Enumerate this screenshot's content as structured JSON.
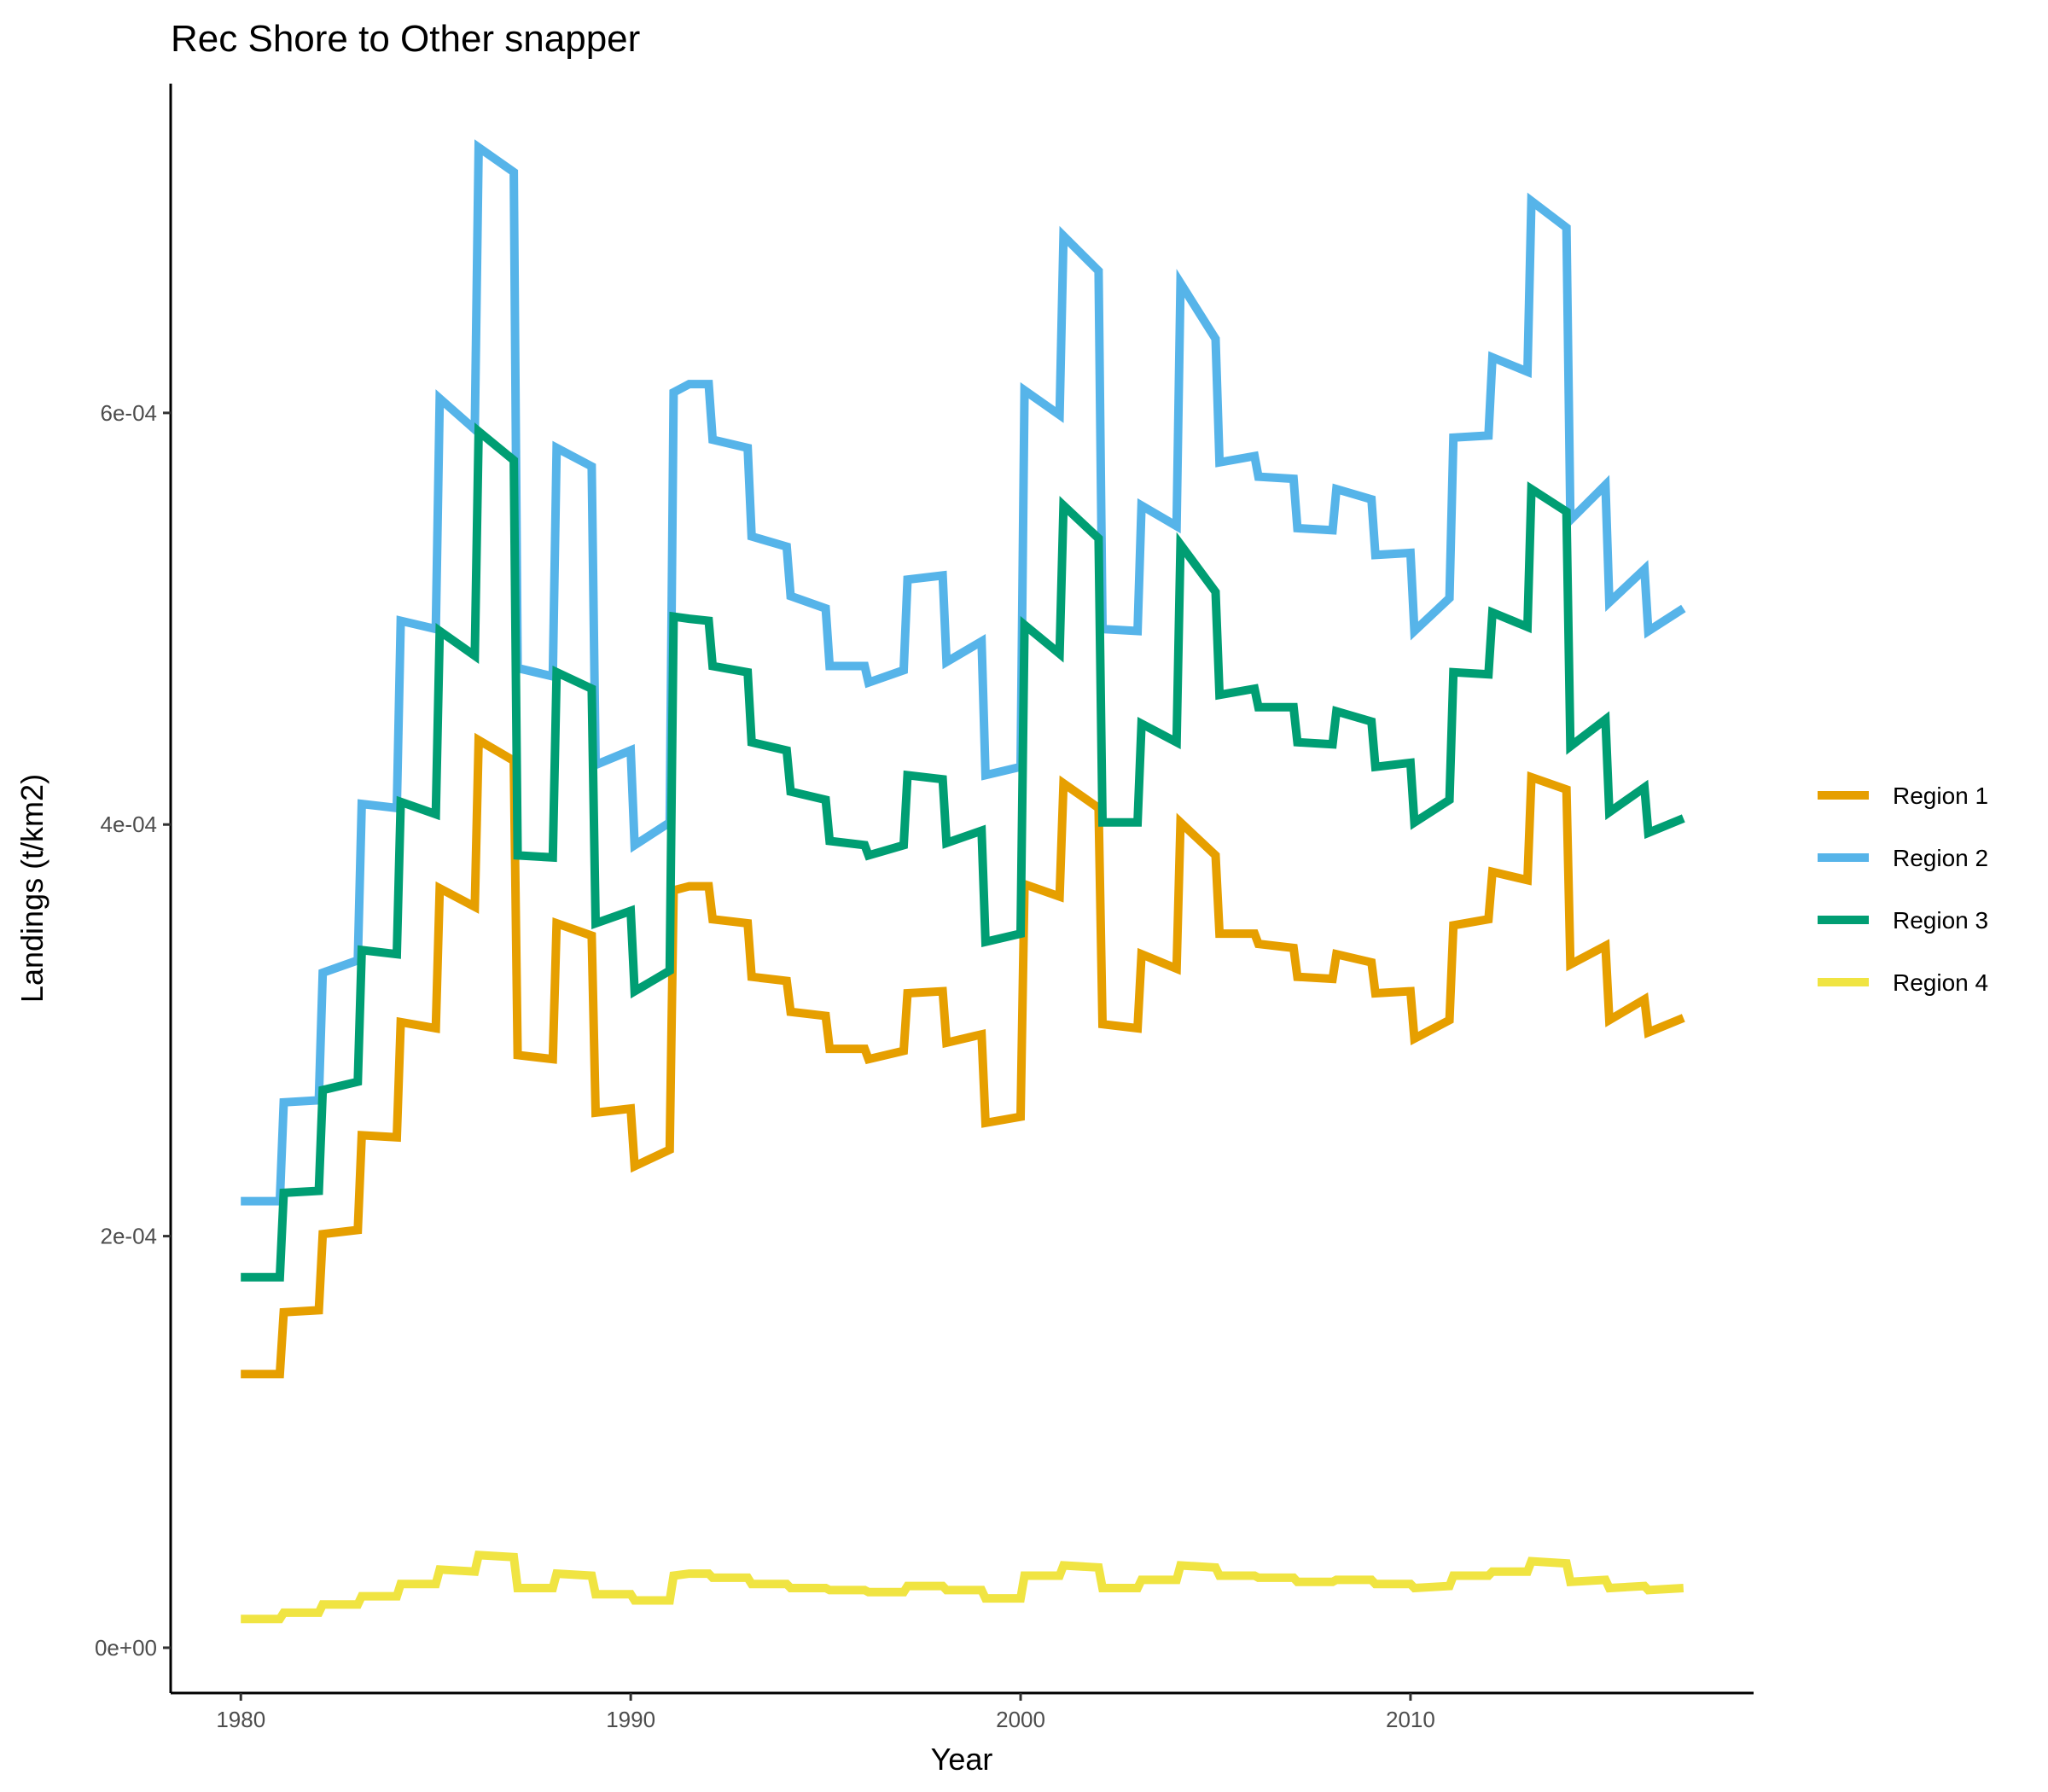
{
  "chart_data": {
    "type": "line",
    "title": "Rec Shore to Other snapper",
    "xlabel": "Year",
    "ylabel": "Landings (t/km2)",
    "xlim": [
      1978.2,
      2018.8
    ],
    "ylim": [
      -2.2e-05,
      0.00076
    ],
    "x_ticks": [
      1980,
      1990,
      2000,
      2010
    ],
    "x_tick_labels": [
      "1980",
      "1990",
      "2000",
      "2010"
    ],
    "y_ticks": [
      0,
      0.0002,
      0.0004,
      0.0006
    ],
    "y_tick_labels": [
      "0e+00",
      "2e-04",
      "4e-04",
      "6e-04"
    ],
    "grid": false,
    "legend_position": "right",
    "x": [
      1980.0,
      1981.0,
      1981.1,
      1982.0,
      1982.1,
      1983.0,
      1983.1,
      1984.0,
      1984.1,
      1985.0,
      1985.1,
      1986.0,
      1986.1,
      1987.0,
      1987.1,
      1988.0,
      1988.1,
      1989.0,
      1989.1,
      1990.0,
      1990.1,
      1991.0,
      1991.1,
      1991.5,
      1992.0,
      1992.1,
      1993.0,
      1993.1,
      1994.0,
      1994.1,
      1995.0,
      1995.1,
      1996.0,
      1996.1,
      1997.0,
      1997.1,
      1998.0,
      1998.1,
      1999.0,
      1999.1,
      2000.0,
      2000.1,
      2001.0,
      2001.1,
      2002.0,
      2002.1,
      2003.0,
      2003.1,
      2004.0,
      2004.1,
      2005.0,
      2005.1,
      2006.0,
      2006.1,
      2007.0,
      2007.1,
      2008.0,
      2008.1,
      2009.0,
      2009.1,
      2010.0,
      2010.1,
      2011.0,
      2011.1,
      2012.0,
      2012.1,
      2013.0,
      2013.1,
      2014.0,
      2014.1,
      2015.0,
      2015.1,
      2016.0,
      2016.1,
      2017.0
    ],
    "series": [
      {
        "name": "Region 1",
        "color": "#E69F00",
        "values": [
          0.000133,
          0.000133,
          0.000163,
          0.000164,
          0.000201,
          0.000203,
          0.000249,
          0.000248,
          0.000304,
          0.000301,
          0.000369,
          0.00036,
          0.000441,
          0.000431,
          0.000288,
          0.000286,
          0.000352,
          0.000346,
          0.00026,
          0.000262,
          0.000234,
          0.000242,
          0.000368,
          0.00037,
          0.00037,
          0.000354,
          0.000352,
          0.000326,
          0.000324,
          0.000309,
          0.000307,
          0.000291,
          0.000291,
          0.000286,
          0.00029,
          0.000318,
          0.000319,
          0.000294,
          0.000298,
          0.000255,
          0.000258,
          0.000371,
          0.000365,
          0.00042,
          0.000408,
          0.000303,
          0.000301,
          0.000337,
          0.00033,
          0.000401,
          0.000385,
          0.000347,
          0.000347,
          0.000342,
          0.00034,
          0.000326,
          0.000325,
          0.000337,
          0.000333,
          0.000318,
          0.000319,
          0.000296,
          0.000305,
          0.000351,
          0.000354,
          0.000377,
          0.000373,
          0.000423,
          0.000417,
          0.000332,
          0.000341,
          0.000305,
          0.000315,
          0.000299,
          0.000306
        ]
      },
      {
        "name": "Region 2",
        "color": "#56B4E9",
        "values": [
          0.000217,
          0.000217,
          0.000265,
          0.000266,
          0.000328,
          0.000334,
          0.00041,
          0.000408,
          0.000499,
          0.000495,
          0.000607,
          0.000592,
          0.000729,
          0.000717,
          0.000476,
          0.000472,
          0.000583,
          0.000574,
          0.000429,
          0.000436,
          0.00039,
          0.000401,
          0.00061,
          0.000614,
          0.000614,
          0.000587,
          0.000583,
          0.00054,
          0.000535,
          0.000511,
          0.000505,
          0.000477,
          0.000477,
          0.000469,
          0.000475,
          0.000519,
          0.000521,
          0.000479,
          0.000489,
          0.000424,
          0.000428,
          0.000611,
          0.000599,
          0.000686,
          0.000669,
          0.000495,
          0.000494,
          0.000555,
          0.000545,
          0.000663,
          0.000636,
          0.000576,
          0.000579,
          0.000569,
          0.000568,
          0.000544,
          0.000543,
          0.000563,
          0.000558,
          0.000531,
          0.000532,
          0.000494,
          0.00051,
          0.000588,
          0.000589,
          0.000627,
          0.00062,
          0.000703,
          0.00069,
          0.000548,
          0.000565,
          0.000508,
          0.000524,
          0.000494,
          0.000505
        ]
      },
      {
        "name": "Region 3",
        "color": "#009E73",
        "values": [
          0.00018,
          0.00018,
          0.000221,
          0.000222,
          0.000271,
          0.000275,
          0.000339,
          0.000337,
          0.000411,
          0.000405,
          0.000494,
          0.000482,
          0.000591,
          0.000577,
          0.000385,
          0.000384,
          0.000474,
          0.000466,
          0.000352,
          0.000358,
          0.000319,
          0.000329,
          0.000501,
          0.0005,
          0.000499,
          0.000477,
          0.000474,
          0.00044,
          0.000436,
          0.000416,
          0.000412,
          0.000392,
          0.00039,
          0.000385,
          0.00039,
          0.000424,
          0.000422,
          0.000391,
          0.000397,
          0.000343,
          0.000347,
          0.000497,
          0.000483,
          0.000555,
          0.000539,
          0.000401,
          0.000401,
          0.000449,
          0.00044,
          0.000536,
          0.000513,
          0.000463,
          0.000466,
          0.000457,
          0.000457,
          0.00044,
          0.000439,
          0.000455,
          0.00045,
          0.000428,
          0.00043,
          0.000401,
          0.000412,
          0.000474,
          0.000473,
          0.000503,
          0.000496,
          0.000563,
          0.000552,
          0.000438,
          0.000451,
          0.000406,
          0.000418,
          0.000396,
          0.000403
        ]
      },
      {
        "name": "Region 4",
        "color": "#F0E442",
        "values": [
          1.4e-05,
          1.4e-05,
          1.7e-05,
          1.7e-05,
          2.1e-05,
          2.1e-05,
          2.5e-05,
          2.5e-05,
          3.1e-05,
          3.1e-05,
          3.8e-05,
          3.7e-05,
          4.5e-05,
          4.4e-05,
          2.9e-05,
          2.9e-05,
          3.6e-05,
          3.5e-05,
          2.6e-05,
          2.6e-05,
          2.3e-05,
          2.3e-05,
          3.5e-05,
          3.6e-05,
          3.6e-05,
          3.4e-05,
          3.4e-05,
          3.1e-05,
          3.1e-05,
          2.9e-05,
          2.9e-05,
          2.8e-05,
          2.8e-05,
          2.7e-05,
          2.7e-05,
          3e-05,
          3e-05,
          2.8e-05,
          2.8e-05,
          2.4e-05,
          2.4e-05,
          3.5e-05,
          3.5e-05,
          4e-05,
          3.9e-05,
          2.9e-05,
          2.9e-05,
          3.3e-05,
          3.3e-05,
          4e-05,
          3.9e-05,
          3.5e-05,
          3.5e-05,
          3.4e-05,
          3.4e-05,
          3.2e-05,
          3.2e-05,
          3.3e-05,
          3.3e-05,
          3.1e-05,
          3.1e-05,
          2.9e-05,
          3e-05,
          3.5e-05,
          3.5e-05,
          3.7e-05,
          3.7e-05,
          4.2e-05,
          4.1e-05,
          3.2e-05,
          3.3e-05,
          2.9e-05,
          3e-05,
          2.8e-05,
          2.9e-05
        ]
      }
    ]
  }
}
